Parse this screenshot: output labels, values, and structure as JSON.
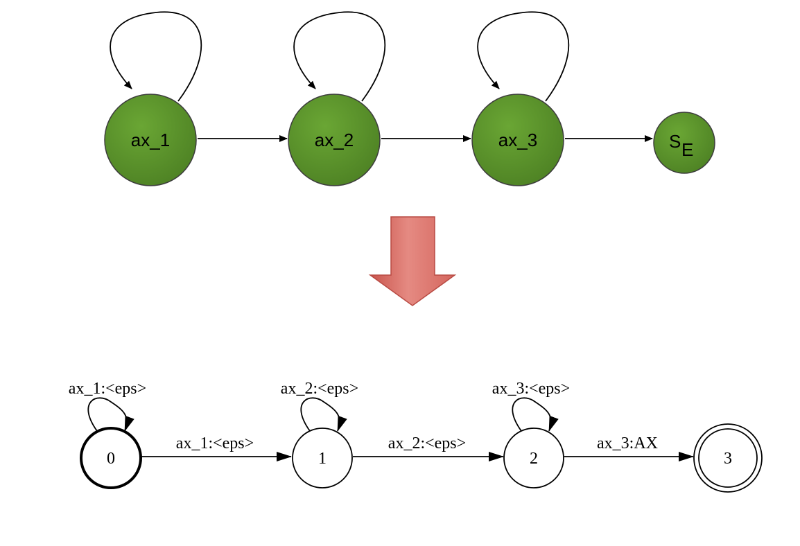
{
  "hmm": {
    "states": [
      {
        "id": "ax_1",
        "label": "ax_1"
      },
      {
        "id": "ax_2",
        "label": "ax_2"
      },
      {
        "id": "ax_3",
        "label": "ax_3"
      }
    ],
    "end_state": {
      "label": "S",
      "subscript": "E"
    },
    "node_color": "#5a9128"
  },
  "arrow_color": "#e07b72",
  "fst": {
    "states": [
      {
        "id": "0",
        "label": "0",
        "type": "initial"
      },
      {
        "id": "1",
        "label": "1",
        "type": "normal"
      },
      {
        "id": "2",
        "label": "2",
        "type": "normal"
      },
      {
        "id": "3",
        "label": "3",
        "type": "final"
      }
    ],
    "self_loops": [
      {
        "state": "0",
        "label": "ax_1:<eps>"
      },
      {
        "state": "1",
        "label": "ax_2:<eps>"
      },
      {
        "state": "2",
        "label": "ax_3:<eps>"
      }
    ],
    "transitions": [
      {
        "from": "0",
        "to": "1",
        "label": "ax_1:<eps>"
      },
      {
        "from": "1",
        "to": "2",
        "label": "ax_2:<eps>"
      },
      {
        "from": "2",
        "to": "3",
        "label": "ax_3:AX"
      }
    ]
  }
}
